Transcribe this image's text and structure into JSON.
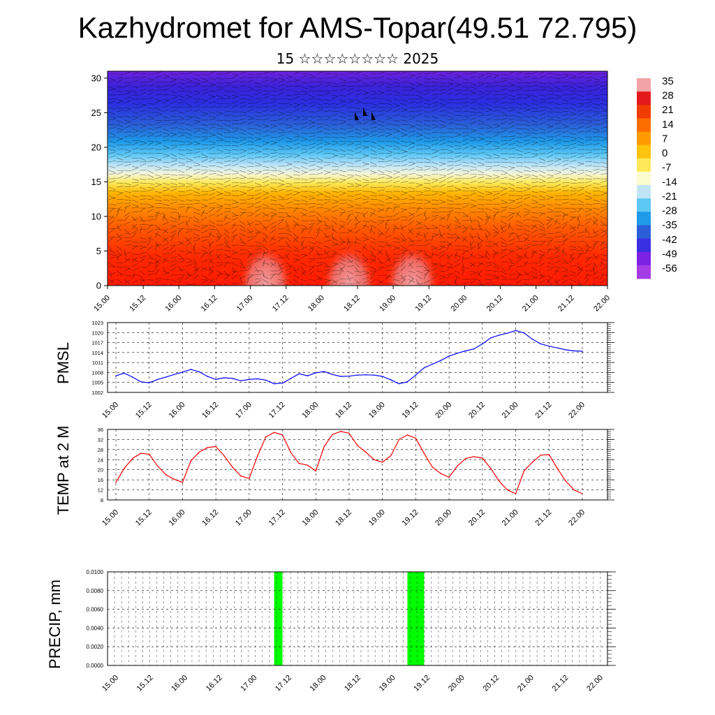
{
  "title": "Kazhydromet for AMS-Topar(49.51 72.795)",
  "subtitle": "15 ☆☆☆☆☆☆☆☆ 2025",
  "time_ticks": [
    "15.00",
    "15.12",
    "16.00",
    "16.12",
    "17.00",
    "17.12",
    "18.00",
    "18.12",
    "19.00",
    "19.12",
    "20.00",
    "20.12",
    "21.00",
    "21.12",
    "22.00"
  ],
  "colors": {
    "pmsl_line": "#0000ff",
    "temp_line": "#ff0000",
    "precip_bar": "#00ff00"
  },
  "chart_data": [
    {
      "type": "heatmap",
      "name": "cross-section",
      "x_ticks": [
        "15.00",
        "15.12",
        "16.00",
        "16.12",
        "17.00",
        "17.12",
        "18.00",
        "18.12",
        "19.00",
        "19.12",
        "20.00",
        "20.12",
        "21.00",
        "21.12",
        "22.00"
      ],
      "y_ticks": [
        "0",
        "5",
        "10",
        "15",
        "20",
        "25",
        "30"
      ],
      "ylim": [
        0,
        31
      ],
      "colorbar_labels": [
        "35",
        "28",
        "21",
        "14",
        "7",
        "0",
        "-7",
        "-14",
        "-21",
        "-28",
        "-35",
        "-42",
        "-49",
        "-56"
      ],
      "colorbar_colors": [
        "#f2a3a6",
        "#e31a1c",
        "#f03c00",
        "#fc6e00",
        "#ff9a00",
        "#ffc20e",
        "#fde95a",
        "#fbfbd0",
        "#bfe5f7",
        "#5ec8f5",
        "#1f9ae8",
        "#2b5fd8",
        "#3a30e2",
        "#7b22e4",
        "#a33ce6"
      ]
    },
    {
      "type": "line",
      "name": "pmsl",
      "ylabel": "PMSL",
      "y_ticks": [
        "1002",
        "1005",
        "1008",
        "1011",
        "1014",
        "1017",
        "1020",
        "1023"
      ],
      "ylim": [
        1002,
        1023
      ],
      "x": [
        0,
        1,
        2,
        3,
        4,
        5,
        6,
        7,
        8,
        9,
        10,
        11,
        12,
        13,
        14,
        15,
        16,
        17,
        18,
        19,
        20,
        21,
        22,
        23,
        24,
        25,
        26,
        27,
        28,
        29,
        30,
        31,
        32,
        33,
        34,
        35,
        36,
        37,
        38,
        39,
        40,
        41,
        42,
        43,
        44,
        45,
        46,
        47,
        48,
        49,
        50,
        51,
        52,
        53,
        54,
        55,
        56
      ],
      "values": [
        1007,
        1007.8,
        1006.6,
        1005.2,
        1004.9,
        1005.9,
        1006.6,
        1007.4,
        1008.1,
        1008.9,
        1008.2,
        1006.8,
        1005.9,
        1006.4,
        1006.2,
        1005.5,
        1005.9,
        1006.1,
        1005.7,
        1004.6,
        1004.8,
        1006.2,
        1007.6,
        1007,
        1007.9,
        1008.3,
        1007.4,
        1006.8,
        1006.9,
        1007.2,
        1007.3,
        1007.2,
        1006.8,
        1005.8,
        1004.6,
        1005.2,
        1007.2,
        1009.4,
        1010.5,
        1011.6,
        1012.9,
        1013.8,
        1014.5,
        1015.1,
        1016.6,
        1018.4,
        1019.2,
        1019.8,
        1020.6,
        1019.9,
        1018,
        1016.6,
        1015.9,
        1015.4,
        1014.8,
        1014.5,
        1014.4
      ]
    },
    {
      "type": "line",
      "name": "temp",
      "ylabel": "TEMP at 2 M",
      "y_ticks": [
        "8",
        "12",
        "16",
        "20",
        "24",
        "28",
        "32",
        "36"
      ],
      "ylim": [
        8,
        36
      ],
      "x": [
        0,
        1,
        2,
        3,
        4,
        5,
        6,
        7,
        8,
        9,
        10,
        11,
        12,
        13,
        14,
        15,
        16,
        17,
        18,
        19,
        20,
        21,
        22,
        23,
        24,
        25,
        26,
        27,
        28,
        29,
        30,
        31,
        32,
        33,
        34,
        35,
        36,
        37,
        38,
        39,
        40,
        41,
        42,
        43,
        44,
        45,
        46,
        47,
        48,
        49,
        50,
        51,
        52,
        53,
        54,
        55,
        56
      ],
      "values": [
        15,
        20.5,
        24.5,
        26.5,
        26.2,
        21.5,
        18,
        16.2,
        15,
        23.5,
        27,
        28.8,
        29.2,
        25.5,
        21,
        17.5,
        16.5,
        25.5,
        33,
        34.8,
        33.8,
        26.8,
        22.5,
        21.8,
        19.5,
        29.2,
        34,
        35.2,
        34.5,
        29.6,
        27,
        24,
        23,
        25.5,
        32,
        33.8,
        32.5,
        26.5,
        21,
        18.5,
        17,
        21.5,
        24.5,
        25.2,
        24.6,
        20.5,
        15.5,
        12,
        10.5,
        19.5,
        23,
        25.8,
        26,
        20.5,
        15.5,
        12,
        10.5
      ]
    },
    {
      "type": "bar",
      "name": "precip",
      "ylabel": "PRECIP, mm",
      "y_ticks": [
        "0.0000",
        "0.0020",
        "0.0040",
        "0.0060",
        "0.0080",
        "0.0100"
      ],
      "ylim": [
        0,
        0.01
      ],
      "bars": [
        {
          "x_start": 19.0,
          "x_end": 20.0,
          "value": 0.01
        },
        {
          "x_start": 35.0,
          "x_end": 37.0,
          "value": 0.01
        }
      ]
    }
  ]
}
